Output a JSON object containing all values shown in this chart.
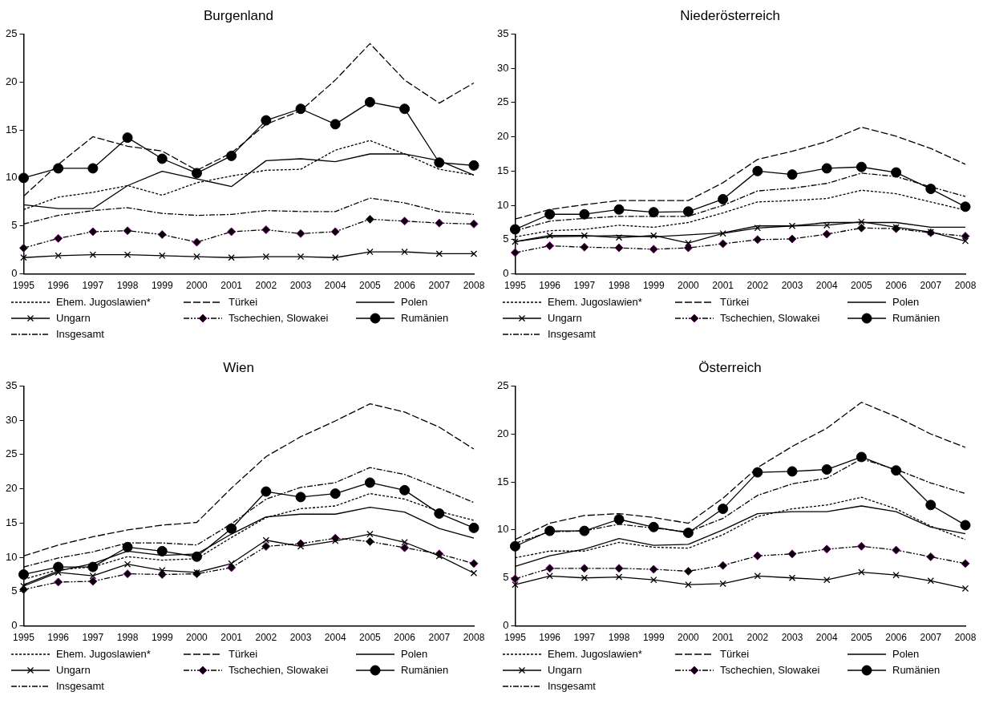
{
  "chart_data": [
    {
      "type": "line",
      "title": "Burgenland",
      "categories": [
        "1995",
        "1996",
        "1997",
        "1998",
        "1999",
        "2000",
        "2001",
        "2002",
        "2003",
        "2004",
        "2005",
        "2006",
        "2007",
        "2008"
      ],
      "ylim": [
        0,
        25
      ],
      "yticks": [
        0,
        5,
        10,
        15,
        20,
        25
      ],
      "grid": false,
      "legend": "bottom",
      "series": [
        {
          "name": "Ehem. Jugoslawien*",
          "color": "#000000",
          "line_style": "dotted",
          "marker": "none",
          "values": [
            6.7,
            8.0,
            8.5,
            9.2,
            8.2,
            9.5,
            10.2,
            10.8,
            10.9,
            12.9,
            13.9,
            12.5,
            10.9,
            10.3
          ]
        },
        {
          "name": "Türkei",
          "color": "#000000",
          "line_style": "dashed",
          "marker": "none",
          "values": [
            8.1,
            11.4,
            14.3,
            13.3,
            12.8,
            10.8,
            12.6,
            15.6,
            17.0,
            20.2,
            24.0,
            20.2,
            17.8,
            19.9
          ]
        },
        {
          "name": "Polen",
          "color": "#000000",
          "line_style": "solid",
          "marker": "none",
          "values": [
            7.2,
            6.8,
            6.8,
            9.2,
            10.7,
            9.9,
            9.1,
            11.8,
            12.0,
            11.7,
            12.5,
            12.5,
            11.8,
            10.3
          ]
        },
        {
          "name": "Ungarn",
          "color": "#000000",
          "line_style": "solid",
          "marker": "cross",
          "values": [
            1.7,
            1.9,
            2.0,
            2.0,
            1.9,
            1.8,
            1.7,
            1.8,
            1.8,
            1.7,
            2.3,
            2.3,
            2.1,
            2.1
          ]
        },
        {
          "name": "Tschechien, Slowakei",
          "color": "#000000",
          "line_style": "dashdotdot",
          "marker": "diamond",
          "values": [
            2.7,
            3.7,
            4.4,
            4.5,
            4.1,
            3.3,
            4.4,
            4.6,
            4.2,
            4.4,
            5.7,
            5.5,
            5.3,
            5.2
          ]
        },
        {
          "name": "Rumänien",
          "color": "#000000",
          "line_style": "solid",
          "marker": "circle",
          "values": [
            10.0,
            11.0,
            11.0,
            14.2,
            12.0,
            10.5,
            12.3,
            16.0,
            17.2,
            15.6,
            17.9,
            17.2,
            11.6,
            11.3
          ]
        },
        {
          "name": "Insgesamt",
          "color": "#000000",
          "line_style": "dashdot",
          "marker": "none",
          "values": [
            5.2,
            6.1,
            6.6,
            6.9,
            6.3,
            6.1,
            6.2,
            6.6,
            6.5,
            6.5,
            7.9,
            7.4,
            6.5,
            6.2
          ]
        }
      ]
    },
    {
      "type": "line",
      "title": "Niederösterreich",
      "categories": [
        "1995",
        "1996",
        "1997",
        "1998",
        "1999",
        "2000",
        "2001",
        "2002",
        "2003",
        "2004",
        "2005",
        "2006",
        "2007",
        "2008"
      ],
      "ylim": [
        0,
        35
      ],
      "yticks": [
        0,
        5,
        10,
        15,
        20,
        25,
        30,
        35
      ],
      "grid": false,
      "legend": "bottom",
      "series": [
        {
          "name": "Ehem. Jugoslawien*",
          "color": "#000000",
          "line_style": "dotted",
          "marker": "none",
          "values": [
            5.4,
            6.3,
            6.5,
            7.1,
            6.8,
            7.5,
            8.9,
            10.5,
            10.7,
            11.0,
            12.2,
            11.7,
            10.5,
            9.3
          ]
        },
        {
          "name": "Türkei",
          "color": "#000000",
          "line_style": "dashed",
          "marker": "none",
          "values": [
            8.0,
            9.4,
            10.1,
            10.7,
            10.7,
            10.7,
            13.3,
            16.7,
            17.9,
            19.3,
            21.4,
            20.1,
            18.3,
            16.0
          ]
        },
        {
          "name": "Polen",
          "color": "#000000",
          "line_style": "solid",
          "marker": "none",
          "values": [
            4.7,
            5.4,
            5.5,
            5.6,
            5.4,
            5.7,
            6.0,
            7.0,
            7.0,
            7.5,
            7.5,
            7.5,
            6.8,
            6.8
          ]
        },
        {
          "name": "Ungarn",
          "color": "#000000",
          "line_style": "solid",
          "marker": "cross",
          "values": [
            4.7,
            5.6,
            5.6,
            5.3,
            5.6,
            4.5,
            5.9,
            6.7,
            7.0,
            7.1,
            7.6,
            6.8,
            6.1,
            4.8
          ]
        },
        {
          "name": "Tschechien, Slowakei",
          "color": "#000000",
          "line_style": "dashdotdot",
          "marker": "diamond",
          "values": [
            3.1,
            4.1,
            3.9,
            3.8,
            3.6,
            3.8,
            4.4,
            5.0,
            5.1,
            5.8,
            6.7,
            6.6,
            6.0,
            5.5
          ]
        },
        {
          "name": "Rumänien",
          "color": "#000000",
          "line_style": "solid",
          "marker": "circle",
          "values": [
            6.5,
            8.7,
            8.7,
            9.4,
            9.0,
            9.1,
            10.9,
            15.0,
            14.5,
            15.4,
            15.6,
            14.8,
            12.4,
            9.8
          ]
        },
        {
          "name": "Insgesamt",
          "color": "#000000",
          "line_style": "dashdot",
          "marker": "none",
          "values": [
            6.3,
            7.7,
            8.1,
            8.4,
            8.4,
            8.4,
            10.0,
            12.1,
            12.5,
            13.2,
            14.7,
            14.2,
            12.7,
            11.3
          ]
        }
      ]
    },
    {
      "type": "line",
      "title": "Wien",
      "categories": [
        "1995",
        "1996",
        "1997",
        "1998",
        "1999",
        "2000",
        "2001",
        "2002",
        "2003",
        "2004",
        "2005",
        "2006",
        "2007",
        "2008"
      ],
      "ylim": [
        0,
        35
      ],
      "yticks": [
        0,
        5,
        10,
        15,
        20,
        25,
        30,
        35
      ],
      "grid": false,
      "legend": "bottom",
      "series": [
        {
          "name": "Ehem. Jugoslawien*",
          "color": "#000000",
          "line_style": "dotted",
          "marker": "none",
          "values": [
            6.8,
            8.2,
            8.6,
            10.1,
            9.6,
            9.8,
            12.9,
            15.8,
            17.1,
            17.5,
            19.3,
            18.5,
            16.7,
            15.4
          ]
        },
        {
          "name": "Türkei",
          "color": "#000000",
          "line_style": "dashed",
          "marker": "none",
          "values": [
            10.2,
            11.8,
            13.0,
            14.0,
            14.7,
            15.1,
            20.1,
            24.7,
            27.6,
            29.9,
            32.4,
            31.2,
            29.0,
            25.8
          ]
        },
        {
          "name": "Polen",
          "color": "#000000",
          "line_style": "solid",
          "marker": "none",
          "values": [
            6.0,
            8.0,
            9.1,
            10.9,
            10.3,
            10.5,
            13.4,
            15.9,
            16.3,
            16.3,
            17.3,
            16.6,
            14.2,
            12.8
          ]
        },
        {
          "name": "Ungarn",
          "color": "#000000",
          "line_style": "solid",
          "marker": "cross",
          "values": [
            5.8,
            7.8,
            7.3,
            9.0,
            8.1,
            7.8,
            9.1,
            12.5,
            11.6,
            12.4,
            13.4,
            12.2,
            10.2,
            7.7
          ]
        },
        {
          "name": "Tschechien, Slowakei",
          "color": "#000000",
          "line_style": "dashdotdot",
          "marker": "diamond",
          "values": [
            5.3,
            6.4,
            6.5,
            7.6,
            7.5,
            7.6,
            8.5,
            11.6,
            12.0,
            12.8,
            12.3,
            11.4,
            10.5,
            9.1
          ]
        },
        {
          "name": "Rumänien",
          "color": "#000000",
          "line_style": "solid",
          "marker": "circle",
          "values": [
            7.5,
            8.6,
            8.6,
            11.5,
            10.9,
            10.1,
            14.2,
            19.6,
            18.8,
            19.3,
            20.9,
            19.8,
            16.4,
            14.3
          ]
        },
        {
          "name": "Insgesamt",
          "color": "#000000",
          "line_style": "dashdot",
          "marker": "none",
          "values": [
            8.6,
            9.9,
            10.8,
            12.1,
            12.1,
            11.8,
            14.9,
            18.5,
            20.2,
            20.9,
            23.1,
            22.1,
            20.1,
            18.0
          ]
        }
      ]
    },
    {
      "type": "line",
      "title": "Österreich",
      "categories": [
        "1995",
        "1996",
        "1997",
        "1998",
        "1999",
        "2000",
        "2001",
        "2002",
        "2003",
        "2004",
        "2005",
        "2006",
        "2007",
        "2008"
      ],
      "ylim": [
        0,
        25
      ],
      "yticks": [
        0,
        5,
        10,
        15,
        20,
        25
      ],
      "grid": false,
      "legend": "bottom",
      "series": [
        {
          "name": "Ehem. Jugoslawien*",
          "color": "#000000",
          "line_style": "dotted",
          "marker": "none",
          "values": [
            7.1,
            7.8,
            7.8,
            8.7,
            8.2,
            8.1,
            9.5,
            11.4,
            12.2,
            12.6,
            13.4,
            12.2,
            10.4,
            9.0
          ]
        },
        {
          "name": "Türkei",
          "color": "#000000",
          "line_style": "dashed",
          "marker": "none",
          "values": [
            9.0,
            10.7,
            11.5,
            11.7,
            11.3,
            10.7,
            13.3,
            16.5,
            18.7,
            20.6,
            23.3,
            21.8,
            20.0,
            18.6
          ]
        },
        {
          "name": "Polen",
          "color": "#000000",
          "line_style": "solid",
          "marker": "none",
          "values": [
            6.2,
            7.3,
            8.0,
            9.1,
            8.4,
            8.5,
            10.0,
            11.7,
            11.9,
            11.9,
            12.5,
            11.9,
            10.3,
            9.6
          ]
        },
        {
          "name": "Ungarn",
          "color": "#000000",
          "line_style": "solid",
          "marker": "cross",
          "values": [
            4.3,
            5.2,
            5.0,
            5.1,
            4.8,
            4.3,
            4.4,
            5.2,
            5.0,
            4.8,
            5.6,
            5.3,
            4.7,
            3.9
          ]
        },
        {
          "name": "Tschechien, Slowakei",
          "color": "#000000",
          "line_style": "dashdotdot",
          "marker": "diamond",
          "values": [
            4.9,
            6.0,
            6.0,
            6.0,
            5.9,
            5.7,
            6.3,
            7.3,
            7.5,
            8.0,
            8.3,
            7.9,
            7.2,
            6.5
          ]
        },
        {
          "name": "Rumänien",
          "color": "#000000",
          "line_style": "solid",
          "marker": "circle",
          "values": [
            8.3,
            9.9,
            9.9,
            11.1,
            10.3,
            9.7,
            12.2,
            16.0,
            16.1,
            16.3,
            17.6,
            16.2,
            12.6,
            10.5
          ]
        },
        {
          "name": "Insgesamt",
          "color": "#000000",
          "line_style": "dashdot",
          "marker": "none",
          "values": [
            8.6,
            9.8,
            9.9,
            10.6,
            10.2,
            9.8,
            11.2,
            13.6,
            14.8,
            15.4,
            17.4,
            16.3,
            14.9,
            13.8
          ]
        }
      ]
    }
  ]
}
